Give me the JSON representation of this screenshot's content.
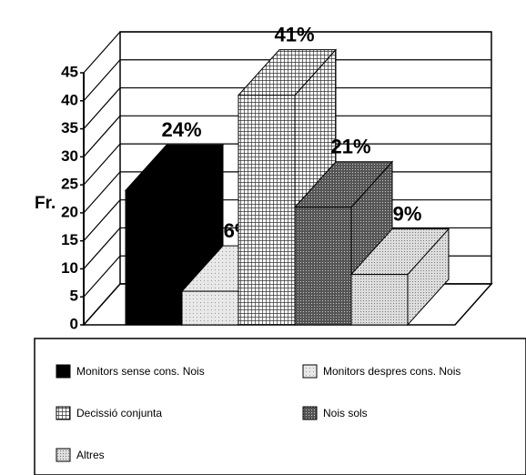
{
  "chart_data": {
    "type": "bar3d",
    "ylabel": "Fr.",
    "ylim": [
      0,
      45
    ],
    "yticks": [
      0,
      5,
      10,
      15,
      20,
      25,
      30,
      35,
      40,
      45
    ],
    "grid": true,
    "series": [
      {
        "name": "Monitors sense cons. Nois",
        "color": "#000000",
        "values": [
          24
        ],
        "value_labels": [
          "24%"
        ]
      },
      {
        "name": "Monitors despres cons. Nois",
        "color": "#e6e6e6",
        "values": [
          6
        ],
        "value_labels": [
          "6%"
        ]
      },
      {
        "name": "Decissió conjunta",
        "color": "#b0b0b0",
        "values": [
          41
        ],
        "value_labels": [
          "41%"
        ]
      },
      {
        "name": "Nois sols",
        "color": "#6a6a6a",
        "values": [
          21
        ],
        "value_labels": [
          "21%"
        ]
      },
      {
        "name": "Altres",
        "color": "#d0d0d0",
        "values": [
          9
        ],
        "value_labels": [
          "9%"
        ]
      }
    ]
  }
}
